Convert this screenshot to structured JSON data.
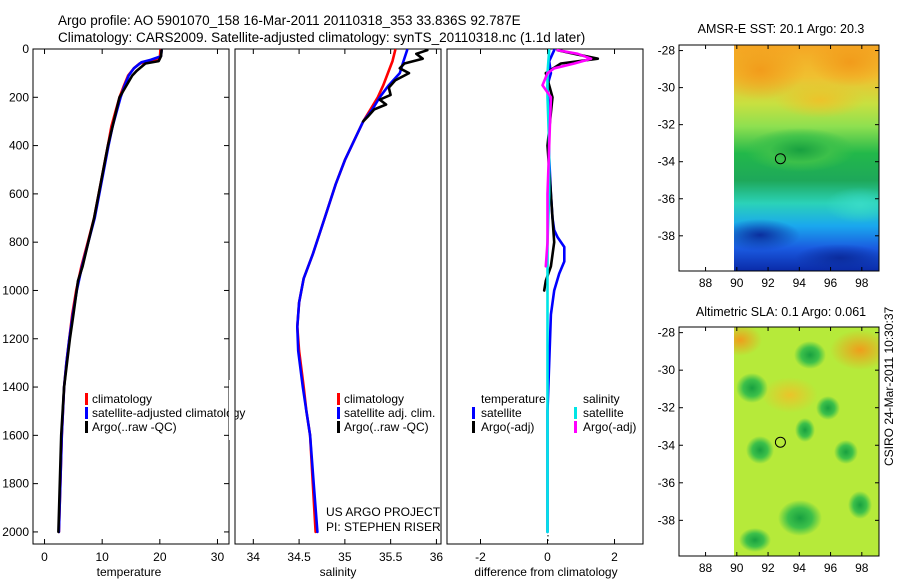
{
  "header": {
    "title_line1": "Argo profile: AO 5901070_158 16-Mar-2011 20110318_353 33.836S 92.787E",
    "title_line2": "Climatology: CARS2009. Satellite-adjusted climatology: synTS_20110318.nc (1.1d later)"
  },
  "colors": {
    "climatology": "#ff0000",
    "satellite": "#0000ff",
    "argo": "#000000",
    "salinity_satellite": "#00e5e5",
    "salinity_argo": "#ff00ff"
  },
  "footer": {
    "project": "US ARGO PROJECT",
    "pi": "PI: STEPHEN RISER",
    "stamp": "CSIRO 24-Mar-2011 10:30:37"
  },
  "chart_data": [
    {
      "id": "temperature",
      "type": "line",
      "xlabel": "temperature",
      "xlim": [
        -2,
        32
      ],
      "ylim": [
        2050,
        0
      ],
      "xticks": [
        "0",
        "10",
        "20",
        "30"
      ],
      "xtick_values": [
        0,
        10,
        20,
        30
      ],
      "yticks": [
        "0",
        "200",
        "400",
        "600",
        "800",
        "1000",
        "1200",
        "1400",
        "1600",
        "1800",
        "2000"
      ],
      "ytick_values": [
        0,
        200,
        400,
        600,
        800,
        1000,
        1200,
        1400,
        1600,
        1800,
        2000
      ],
      "legend": [
        "climatology",
        "satellite-adjusted climatology",
        "Argo(..raw -QC)"
      ],
      "series": [
        {
          "name": "climatology",
          "color": "#ff0000",
          "x": [
            20.1,
            20.0,
            18.2,
            16.5,
            15.5,
            14.5,
            13.8,
            13.0,
            12.3,
            11.6,
            11.0,
            10.2,
            9.4,
            8.6,
            7.5,
            6.4,
            5.5,
            4.8,
            4.3,
            3.8,
            3.4,
            3.0,
            2.5
          ],
          "y": [
            5,
            40,
            50,
            60,
            80,
            110,
            150,
            200,
            260,
            320,
            400,
            500,
            600,
            700,
            800,
            900,
            1000,
            1100,
            1200,
            1300,
            1400,
            1600,
            2000
          ]
        },
        {
          "name": "satellite-adjusted climatology",
          "color": "#0000ff",
          "x": [
            20.3,
            20.2,
            18.4,
            16.8,
            15.5,
            14.6,
            13.9,
            13.2,
            12.5,
            11.8,
            11.1,
            10.3,
            9.5,
            8.7,
            7.6,
            6.5,
            5.6,
            4.9,
            4.3,
            3.8,
            3.4,
            3.0,
            2.5
          ],
          "y": [
            5,
            30,
            45,
            55,
            80,
            110,
            150,
            200,
            260,
            320,
            400,
            500,
            600,
            700,
            800,
            900,
            1000,
            1100,
            1200,
            1300,
            1400,
            1600,
            2000
          ]
        },
        {
          "name": "Argo(..raw -QC)",
          "color": "#000000",
          "x": [
            20.3,
            20.2,
            19.8,
            17.5,
            16.0,
            15.2,
            14.0,
            13.0,
            12.4,
            11.8,
            11.0,
            10.2,
            9.4,
            8.6,
            7.6,
            6.6,
            5.8,
            5.0,
            4.4,
            3.9,
            3.4,
            2.9,
            2.4
          ],
          "y": [
            5,
            30,
            50,
            60,
            90,
            110,
            160,
            200,
            260,
            320,
            400,
            500,
            600,
            700,
            800,
            900,
            960,
            1100,
            1200,
            1300,
            1400,
            1600,
            2000
          ]
        }
      ]
    },
    {
      "id": "salinity",
      "type": "line",
      "xlabel": "salinity",
      "xlim": [
        33.8,
        36.05
      ],
      "ylim": [
        2050,
        0
      ],
      "xticks": [
        "34",
        "34.5",
        "35",
        "35.5",
        "36"
      ],
      "xtick_values": [
        34,
        34.5,
        35,
        35.5,
        36
      ],
      "legend": [
        "climatology",
        "satellite adj. clim.",
        "Argo(..raw -QC)"
      ],
      "series": [
        {
          "name": "climatology",
          "color": "#ff0000",
          "x": [
            35.55,
            35.52,
            35.47,
            35.42,
            35.36,
            35.28,
            35.2,
            35.1,
            35.0,
            34.9,
            34.78,
            34.65,
            34.55,
            34.5,
            34.48,
            34.5,
            34.55,
            34.58,
            34.62,
            34.65,
            34.68
          ],
          "y": [
            5,
            50,
            100,
            150,
            200,
            250,
            300,
            380,
            460,
            560,
            700,
            850,
            950,
            1050,
            1150,
            1250,
            1400,
            1500,
            1600,
            1800,
            2000
          ]
        },
        {
          "name": "satellite adj. clim.",
          "color": "#0000ff",
          "x": [
            35.68,
            35.64,
            35.6,
            35.48,
            35.38,
            35.3,
            35.2,
            35.1,
            35.0,
            34.9,
            34.78,
            34.65,
            34.55,
            34.5,
            34.48,
            34.49,
            34.54,
            34.58,
            34.62,
            34.66,
            34.7
          ],
          "y": [
            5,
            50,
            100,
            150,
            200,
            250,
            300,
            380,
            460,
            560,
            700,
            850,
            950,
            1050,
            1150,
            1250,
            1400,
            1500,
            1600,
            1800,
            2000
          ]
        },
        {
          "name": "Argo(..raw -QC)",
          "color": "#000000",
          "x": [
            35.9,
            35.78,
            35.85,
            35.65,
            35.6,
            35.7,
            35.55,
            35.48,
            35.5,
            35.38,
            35.45,
            35.32,
            35.25,
            35.2
          ],
          "y": [
            5,
            20,
            40,
            60,
            80,
            100,
            130,
            160,
            190,
            210,
            230,
            250,
            280,
            300
          ]
        }
      ]
    },
    {
      "id": "difference",
      "type": "line",
      "xlabel": "difference from climatology",
      "xlim": [
        -3.0,
        2.85
      ],
      "ylim": [
        2050,
        0
      ],
      "xticks": [
        "-2",
        "0",
        "2"
      ],
      "xtick_values": [
        -2,
        0,
        2
      ],
      "legend_temperature_title": "temperature",
      "legend_salinity_title": "salinity",
      "legend": [
        "satellite",
        "Argo(-adj)",
        "satellite",
        "Argo(-adj)"
      ],
      "series": [
        {
          "name": "temperature satellite",
          "color": "#0000ff",
          "x": [
            0.2,
            0.05,
            0.1,
            0.0,
            0.05,
            0.05,
            0.1,
            0.15,
            0.2,
            0.3,
            0.5,
            0.5,
            0.35,
            0.2,
            0.1,
            0.05,
            0.0,
            0.0,
            0.0
          ],
          "y": [
            5,
            50,
            100,
            150,
            300,
            450,
            600,
            700,
            750,
            780,
            820,
            880,
            930,
            1000,
            1100,
            1300,
            1500,
            1800,
            2000
          ]
        },
        {
          "name": "temperature Argo(-adj)",
          "color": "#000000",
          "x": [
            0.3,
            0.8,
            1.5,
            0.4,
            -0.05,
            0.15,
            0.0,
            0.1,
            0.15,
            0.2,
            0.1,
            -0.05,
            -0.1
          ],
          "y": [
            5,
            20,
            40,
            60,
            100,
            200,
            400,
            600,
            700,
            800,
            900,
            960,
            1000
          ]
        },
        {
          "name": "salinity satellite",
          "color": "#00e5e5",
          "x": [
            0.05,
            0.0,
            0.0,
            0.05,
            0.05,
            0.0,
            0.0,
            0.0,
            0.0,
            0.0
          ],
          "y": [
            5,
            100,
            200,
            400,
            600,
            800,
            1000,
            1300,
            1700,
            2000
          ]
        },
        {
          "name": "salinity Argo(-adj)",
          "color": "#ff00ff",
          "x": [
            0.3,
            0.9,
            1.3,
            0.8,
            0.2,
            0.0,
            -0.15,
            0.1,
            0.05,
            0.0,
            0.0,
            -0.05
          ],
          "y": [
            5,
            20,
            40,
            60,
            80,
            100,
            150,
            200,
            400,
            600,
            800,
            900
          ]
        }
      ]
    },
    {
      "id": "sst_map",
      "type": "heatmap",
      "title": "AMSR-E SST: 20.1 Argo: 20.3",
      "xticks": [
        "88",
        "90",
        "92",
        "94",
        "96",
        "98"
      ],
      "xtick_values": [
        88,
        90,
        92,
        94,
        96,
        98
      ],
      "yticks": [
        "-28",
        "-30",
        "-32",
        "-34",
        "-36",
        "-38"
      ],
      "ytick_values": [
        -28,
        -30,
        -32,
        -34,
        -36,
        -38
      ],
      "xlim": [
        86.3,
        99.1
      ],
      "ylim": [
        -27.7,
        -39.9
      ],
      "no_data_lon_below": 90,
      "float_position": {
        "lon": 92.787,
        "lat": -33.836
      }
    },
    {
      "id": "sla_map",
      "type": "heatmap",
      "title": "Altimetric SLA: 0.1 Argo: 0.061",
      "xticks": [
        "88",
        "90",
        "92",
        "94",
        "96",
        "98"
      ],
      "xtick_values": [
        88,
        90,
        92,
        94,
        96,
        98
      ],
      "yticks": [
        "-28",
        "-30",
        "-32",
        "-34",
        "-36",
        "-38"
      ],
      "ytick_values": [
        -28,
        -30,
        -32,
        -34,
        -36,
        -38
      ],
      "xlim": [
        86.3,
        99.1
      ],
      "ylim": [
        -27.7,
        -39.9
      ],
      "no_data_lon_below": 90,
      "float_position": {
        "lon": 92.787,
        "lat": -33.836
      }
    }
  ]
}
